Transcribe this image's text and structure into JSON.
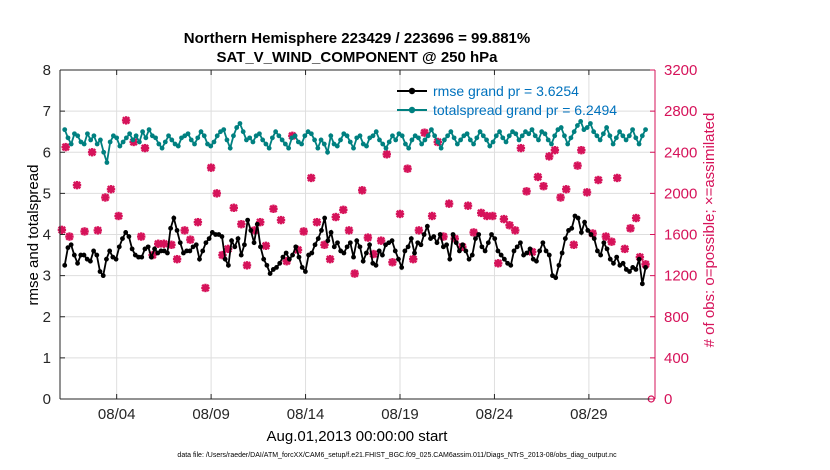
{
  "chart_data": {
    "type": "line",
    "title": "Northern Hemisphere 223429 / 223696 = 99.881%",
    "subtitle": "SAT_V_WIND_COMPONENT @ 250 hPa",
    "xlabel": "Aug.01,2013 00:00:00 start",
    "ylabel_left": "rmse and totalspread",
    "ylabel_right": "# of obs: o=possible; ×=assimilated",
    "xlim": [
      0,
      31.5
    ],
    "ylim_left": [
      0,
      8
    ],
    "ylim_right": [
      0,
      3200
    ],
    "x_ticks": [
      {
        "x": 3,
        "label": "08/04"
      },
      {
        "x": 8,
        "label": "08/09"
      },
      {
        "x": 13,
        "label": "08/14"
      },
      {
        "x": 18,
        "label": "08/19"
      },
      {
        "x": 23,
        "label": "08/24"
      },
      {
        "x": 28,
        "label": "08/29"
      }
    ],
    "y_ticks_left": [
      "0",
      "1",
      "2",
      "3",
      "4",
      "5",
      "6",
      "7",
      "8"
    ],
    "y_ticks_right": [
      "0",
      "400",
      "800",
      "1200",
      "1600",
      "2000",
      "2400",
      "2800",
      "3200"
    ],
    "legend": [
      {
        "label": "rmse grand pr = 3.6254",
        "color": "#000000"
      },
      {
        "label": "totalspread grand pr = 6.2494",
        "color": "#008080"
      }
    ],
    "colors": {
      "rmse": "#000000",
      "totalspread": "#008080",
      "obs": "#d6135a"
    },
    "series": [
      {
        "name": "rmse",
        "axis": "left",
        "values": [
          3.25,
          3.68,
          3.75,
          3.5,
          3.3,
          3.5,
          3.5,
          3.4,
          3.35,
          3.6,
          3.5,
          3.1,
          3.0,
          3.4,
          3.6,
          3.45,
          3.4,
          3.7,
          3.9,
          4.05,
          3.95,
          3.65,
          3.5,
          3.45,
          3.45,
          3.65,
          3.7,
          3.45,
          3.65,
          3.55,
          3.6,
          3.6,
          3.55,
          4.15,
          4.4,
          4.1,
          3.8,
          3.55,
          3.6,
          3.6,
          3.7,
          3.75,
          3.4,
          3.6,
          3.8,
          3.9,
          4.05,
          4.0,
          4.0,
          3.95,
          3.4,
          3.25,
          3.85,
          3.7,
          3.9,
          3.5,
          3.75,
          4.35,
          4.1,
          3.8,
          4.25,
          3.7,
          3.4,
          3.25,
          3.05,
          3.15,
          3.2,
          3.3,
          3.45,
          3.55,
          3.4,
          3.5,
          3.7,
          3.45,
          3.2,
          3.1,
          3.5,
          3.55,
          3.75,
          3.9,
          4.1,
          4.4,
          3.85,
          4.05,
          3.7,
          3.8,
          3.6,
          3.55,
          3.7,
          3.8,
          3.45,
          3.85,
          3.7,
          3.35,
          3.55,
          3.75,
          3.3,
          3.25,
          3.6,
          3.5,
          3.75,
          3.8,
          3.85,
          3.6,
          3.4,
          3.2,
          3.6,
          3.7,
          3.9,
          3.55,
          3.8,
          3.75,
          4.0,
          4.2,
          3.9,
          3.95,
          3.8,
          4.0,
          3.7,
          3.75,
          3.4,
          4.0,
          3.8,
          3.6,
          3.75,
          3.6,
          3.4,
          3.5,
          3.9,
          4.0,
          3.7,
          3.6,
          3.8,
          4.0,
          3.9,
          3.6,
          3.5,
          3.4,
          3.3,
          3.25,
          3.6,
          3.7,
          3.8,
          3.5,
          3.55,
          3.65,
          3.4,
          3.35,
          3.6,
          3.8,
          3.6,
          3.5,
          3.0,
          2.95,
          3.25,
          3.55,
          3.9,
          4.1,
          4.15,
          4.45,
          4.4,
          4.05,
          4.3,
          4.1,
          4.0,
          3.9,
          3.6,
          3.5,
          3.8,
          3.65,
          3.4,
          3.3,
          3.45,
          3.25,
          3.3,
          3.15,
          3.1,
          3.2,
          3.15,
          3.4,
          2.8,
          3.2
        ]
      },
      {
        "name": "totalspread",
        "axis": "left",
        "values": [
          6.55,
          6.35,
          6.2,
          6.45,
          6.4,
          6.25,
          6.2,
          6.45,
          6.3,
          6.4,
          6.2,
          6.3,
          6.0,
          5.75,
          6.25,
          6.4,
          6.35,
          6.15,
          6.25,
          6.35,
          6.45,
          6.3,
          6.4,
          6.25,
          6.5,
          6.35,
          6.55,
          6.4,
          6.35,
          6.2,
          6.1,
          6.25,
          6.4,
          6.3,
          6.2,
          6.15,
          6.35,
          6.4,
          6.45,
          6.3,
          6.2,
          6.35,
          6.5,
          6.4,
          6.2,
          6.15,
          6.25,
          6.4,
          6.5,
          6.55,
          6.3,
          6.1,
          6.4,
          6.6,
          6.7,
          6.5,
          6.3,
          6.35,
          6.25,
          6.4,
          6.45,
          6.3,
          6.2,
          6.1,
          6.35,
          6.5,
          6.4,
          6.3,
          6.2,
          6.1,
          6.35,
          6.4,
          6.25,
          6.2,
          6.4,
          6.5,
          6.45,
          6.3,
          6.1,
          6.3,
          6.2,
          6.0,
          6.4,
          6.2,
          6.15,
          6.3,
          6.45,
          6.4,
          6.25,
          6.1,
          6.35,
          6.4,
          6.2,
          6.15,
          6.35,
          6.4,
          6.5,
          6.3,
          6.2,
          6.1,
          6.25,
          6.4,
          6.3,
          6.45,
          6.4,
          6.2,
          6.1,
          6.3,
          6.4,
          6.35,
          6.2,
          6.3,
          6.4,
          6.55,
          6.4,
          6.25,
          6.1,
          6.3,
          6.4,
          6.5,
          6.35,
          6.2,
          6.3,
          6.4,
          6.45,
          6.3,
          6.2,
          6.35,
          6.5,
          6.4,
          6.3,
          6.15,
          6.25,
          6.4,
          6.5,
          6.35,
          6.25,
          6.4,
          6.5,
          6.45,
          6.3,
          6.4,
          6.5,
          6.45,
          6.55,
          6.4,
          6.3,
          6.5,
          6.45,
          6.3,
          6.2,
          6.4,
          6.55,
          6.6,
          6.4,
          6.2,
          6.35,
          6.5,
          6.65,
          6.75,
          6.55,
          6.6,
          6.7,
          6.5,
          6.4,
          6.3,
          6.45,
          6.6,
          6.4,
          6.2,
          6.35,
          6.5,
          6.4,
          6.3,
          6.4,
          6.55,
          6.35,
          6.2,
          6.4,
          6.55
        ]
      },
      {
        "name": "obs assimilated",
        "axis": "right",
        "marker": "x",
        "points": [
          [
            0.1,
            1645
          ],
          [
            0.3,
            2450
          ],
          [
            0.5,
            1580
          ],
          [
            0.9,
            2080
          ],
          [
            1.3,
            1630
          ],
          [
            1.7,
            2400
          ],
          [
            2.0,
            1640
          ],
          [
            2.4,
            1960
          ],
          [
            2.7,
            2040
          ],
          [
            3.1,
            1780
          ],
          [
            3.5,
            2710
          ],
          [
            3.9,
            2500
          ],
          [
            4.3,
            1580
          ],
          [
            4.5,
            2440
          ],
          [
            4.9,
            1400
          ],
          [
            5.2,
            1510
          ],
          [
            5.5,
            1510
          ],
          [
            5.9,
            1500
          ],
          [
            6.2,
            1360
          ],
          [
            6.6,
            1640
          ],
          [
            6.9,
            1550
          ],
          [
            7.3,
            1720
          ],
          [
            7.7,
            1080
          ],
          [
            8.0,
            2250
          ],
          [
            8.3,
            2000
          ],
          [
            8.6,
            1400
          ],
          [
            8.9,
            1460
          ],
          [
            9.2,
            1860
          ],
          [
            9.6,
            1700
          ],
          [
            9.9,
            1300
          ],
          [
            10.3,
            1640
          ],
          [
            10.6,
            1720
          ],
          [
            10.9,
            1490
          ],
          [
            11.3,
            1850
          ],
          [
            11.7,
            1740
          ],
          [
            12.0,
            1340
          ],
          [
            12.3,
            2560
          ],
          [
            12.6,
            1450
          ],
          [
            12.9,
            1630
          ],
          [
            13.3,
            2150
          ],
          [
            13.6,
            1720
          ],
          [
            14.0,
            1500
          ],
          [
            14.3,
            1360
          ],
          [
            14.6,
            1770
          ],
          [
            15.0,
            1840
          ],
          [
            15.3,
            1640
          ],
          [
            15.6,
            1220
          ],
          [
            16.0,
            2030
          ],
          [
            16.3,
            1570
          ],
          [
            16.6,
            1410
          ],
          [
            17.0,
            1540
          ],
          [
            17.3,
            2380
          ],
          [
            17.6,
            1330
          ],
          [
            18.0,
            1800
          ],
          [
            18.4,
            2240
          ],
          [
            18.7,
            1360
          ],
          [
            19.0,
            1640
          ],
          [
            19.3,
            2590
          ],
          [
            19.7,
            1780
          ],
          [
            20.0,
            2500
          ],
          [
            20.3,
            1580
          ],
          [
            20.6,
            1900
          ],
          [
            20.9,
            1560
          ],
          [
            21.3,
            1480
          ],
          [
            21.6,
            1880
          ],
          [
            21.9,
            1620
          ],
          [
            22.3,
            1810
          ],
          [
            22.6,
            1780
          ],
          [
            22.9,
            1780
          ],
          [
            23.2,
            1320
          ],
          [
            23.5,
            1750
          ],
          [
            23.8,
            1690
          ],
          [
            24.1,
            1640
          ],
          [
            24.4,
            2440
          ],
          [
            24.7,
            2020
          ],
          [
            25.0,
            1430
          ],
          [
            25.3,
            2160
          ],
          [
            25.6,
            2070
          ],
          [
            25.9,
            2360
          ],
          [
            26.2,
            2420
          ],
          [
            26.5,
            1960
          ],
          [
            26.8,
            2040
          ],
          [
            27.2,
            1500
          ],
          [
            27.4,
            2270
          ],
          [
            27.6,
            2420
          ],
          [
            27.9,
            2010
          ],
          [
            28.2,
            1610
          ],
          [
            28.5,
            2130
          ],
          [
            28.9,
            1580
          ],
          [
            29.2,
            1530
          ],
          [
            29.5,
            2150
          ],
          [
            29.9,
            1460
          ],
          [
            30.2,
            1660
          ],
          [
            30.5,
            1760
          ],
          [
            30.7,
            1380
          ],
          [
            31.0,
            1310
          ]
        ]
      },
      {
        "name": "obs possible",
        "axis": "right",
        "marker": "o",
        "points": [
          [
            4.5,
            2440
          ],
          [
            31.3,
            0
          ]
        ]
      }
    ]
  },
  "footer": "data file: /Users/raeder/DAI/ATM_forcXX/CAM6_setup/f.e21.FHIST_BGC.f09_025.CAM6assim.011/Diags_NTrS_2013-08/obs_diag_output.nc"
}
